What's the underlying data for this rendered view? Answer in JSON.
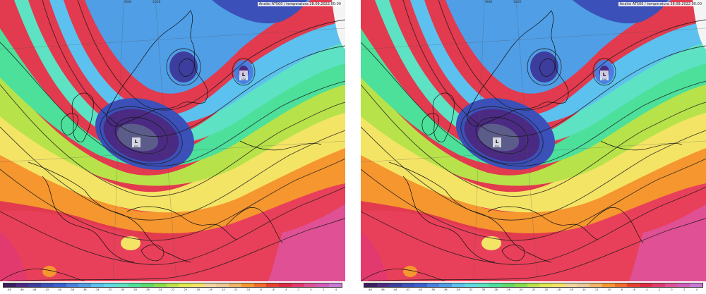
{
  "panels": [
    {
      "header": "Analisi AT500 / temperatura 28.09.2022 00:00",
      "lon_labels": [
        "90W",
        "100E"
      ]
    },
    {
      "header": "Analisi AT500 / temperatura 28.09.2022 00:00",
      "lon_labels": [
        "90W",
        "100E"
      ]
    }
  ],
  "lows": [
    {
      "symbol": "L",
      "value": "522"
    },
    {
      "symbol": "L",
      "value": "538"
    }
  ],
  "scale": {
    "labels": [
      "-48",
      "-46",
      "-44",
      "-42",
      "-40",
      "-38",
      "-36",
      "-34",
      "-32",
      "-30",
      "-28",
      "-26",
      "-24",
      "-22",
      "-20",
      "-18",
      "-16",
      "-14",
      "-12",
      "-10",
      "-8",
      "-6",
      "-4",
      "-2",
      "0",
      "2",
      "4"
    ],
    "colors": [
      "#3a1e5e",
      "#4a2a82",
      "#3d3d9e",
      "#3b50b8",
      "#3a5fd0",
      "#4a7fe0",
      "#4f9ee6",
      "#5cc1ef",
      "#5fd8e6",
      "#5de2c3",
      "#4ce09b",
      "#5fd86a",
      "#88dc4c",
      "#b8e24a",
      "#e1e84f",
      "#f4e466",
      "#f2d6a0",
      "#ecc89a",
      "#f2b366",
      "#f5962f",
      "#f36b2b",
      "#e8402f",
      "#e02a45",
      "#e23a6e",
      "#e05094",
      "#d25bbb",
      "#c978d6"
    ]
  }
}
